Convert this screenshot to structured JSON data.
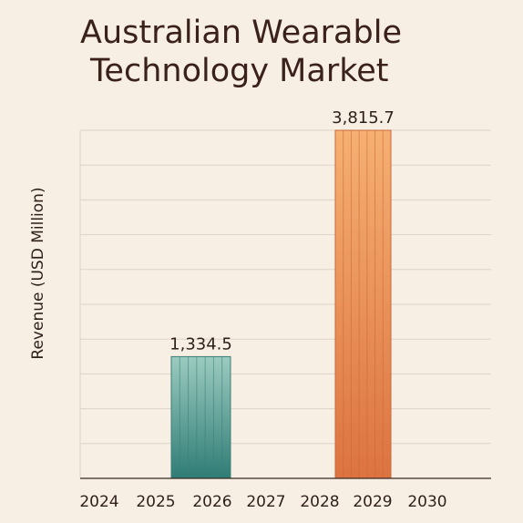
{
  "chart_data": {
    "type": "bar",
    "title_lines": [
      "Australian Wearable",
      "Technology Market"
    ],
    "ylabel": "Revenue (USD Million)",
    "xlabel": "",
    "categories": [
      "2024",
      "2025",
      "2026",
      "2027",
      "2028",
      "2029",
      "2030"
    ],
    "bars": [
      {
        "x_start": "2025",
        "x_end": "2026",
        "value": 1334.5,
        "label": "1,334.5",
        "color": "#4f968c"
      },
      {
        "x_start": "2028",
        "x_end": "2029",
        "value": 3815.7,
        "label": "3,815.7",
        "color": "#ea8d4c"
      }
    ],
    "ylim": [
      0,
      3815.7
    ],
    "grid": true,
    "yticks_shown": false
  }
}
